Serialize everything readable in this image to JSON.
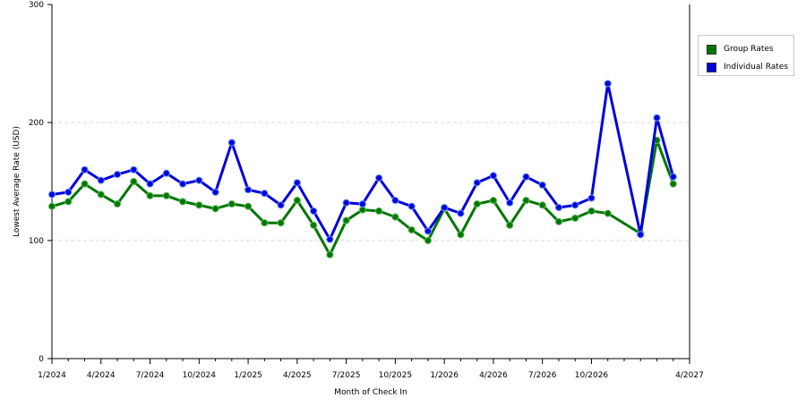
{
  "chart_data": {
    "type": "line",
    "xlabel": "Month of Check In",
    "ylabel": "Lowest Average Rate (USD)",
    "ylim": [
      0,
      300
    ],
    "y_ticks": [
      0,
      100,
      200,
      300
    ],
    "x_tick_labels": [
      "1/2024",
      "4/2024",
      "7/2024",
      "10/2024",
      "1/2025",
      "4/2025",
      "7/2025",
      "10/2025",
      "1/2026",
      "4/2026",
      "7/2026",
      "10/2026",
      "4/2027"
    ],
    "x_tick_indices": [
      0,
      3,
      6,
      9,
      12,
      15,
      18,
      21,
      24,
      27,
      30,
      33,
      39
    ],
    "grid": "horizontal dashed",
    "legend_position": "right",
    "series": [
      {
        "name": "Group Rates",
        "color": "#007700",
        "values": [
          129,
          133,
          148,
          139,
          131,
          150,
          138,
          138,
          133,
          130,
          127,
          131,
          129,
          115,
          115,
          134,
          113,
          88,
          117,
          126,
          125,
          120,
          109,
          100,
          127,
          105,
          131,
          134,
          113,
          134,
          130,
          116,
          119,
          125,
          123,
          106,
          185,
          148
        ]
      },
      {
        "name": "Individual Rates",
        "color": "#0000dd",
        "values": [
          139,
          141,
          160,
          151,
          156,
          160,
          148,
          157,
          148,
          151,
          141,
          183,
          143,
          140,
          130,
          149,
          125,
          101,
          132,
          131,
          153,
          134,
          129,
          108,
          128,
          123,
          149,
          155,
          132,
          154,
          147,
          128,
          130,
          136,
          233,
          105,
          204,
          154
        ]
      }
    ],
    "x_indices": [
      0,
      1,
      2,
      3,
      4,
      5,
      6,
      7,
      8,
      9,
      10,
      11,
      12,
      13,
      14,
      15,
      16,
      17,
      18,
      19,
      20,
      21,
      22,
      23,
      24,
      25,
      26,
      27,
      28,
      29,
      30,
      31,
      32,
      33,
      34,
      36,
      37,
      38
    ]
  }
}
